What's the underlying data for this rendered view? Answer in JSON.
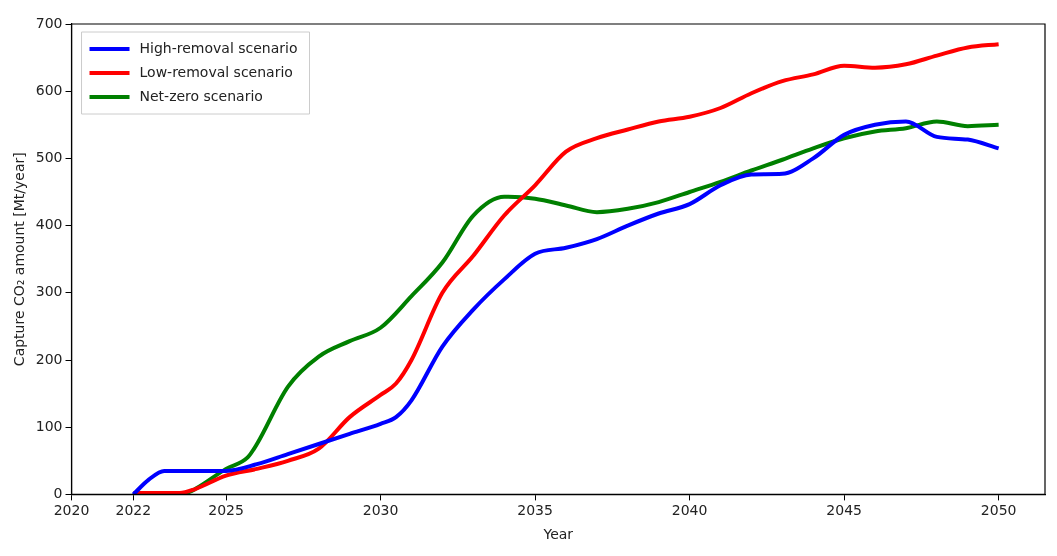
{
  "chart_data": {
    "type": "line",
    "xlabel": "Year",
    "ylabel": "Capture CO₂ amount [Mt/year]",
    "xlim": [
      2020,
      2051.5
    ],
    "xticks": [
      2020,
      2022,
      2025,
      2030,
      2035,
      2040,
      2045,
      2050
    ],
    "ylim": [
      0,
      700
    ],
    "yticks": [
      0,
      100,
      200,
      300,
      400,
      500,
      600,
      700
    ],
    "grid": false,
    "legend": "top left",
    "line_style": "solid",
    "marker": "none",
    "series": [
      {
        "name": "High-removal scenario",
        "color": "#0000ff",
        "x": [
          2022,
          2022.5,
          2023,
          2024,
          2025,
          2026,
          2027,
          2028,
          2029,
          2030,
          2030.5,
          2031,
          2032,
          2033,
          2034,
          2035,
          2036,
          2037,
          2038,
          2039,
          2040,
          2041,
          2042,
          2043,
          2044,
          2045,
          2046,
          2047,
          2048,
          2049,
          2050
        ],
        "values": [
          0,
          22,
          35,
          35,
          35,
          45,
          60,
          75,
          90,
          105,
          115,
          140,
          220,
          275,
          320,
          358,
          367,
          380,
          400,
          418,
          432,
          460,
          476,
          477,
          500,
          535,
          550,
          555,
          532,
          528,
          515
        ]
      },
      {
        "name": "Low-removal scenario",
        "color": "#ff0000",
        "x": [
          2022,
          2023,
          2023.5,
          2024,
          2025,
          2026,
          2027,
          2028,
          2029,
          2030,
          2030.5,
          2031,
          2032,
          2033,
          2034,
          2035,
          2036,
          2037,
          2038,
          2039,
          2040,
          2041,
          2042,
          2043,
          2044,
          2045,
          2046,
          2047,
          2048,
          2049,
          2050
        ],
        "values": [
          2,
          2,
          2,
          8,
          28,
          38,
          50,
          68,
          115,
          148,
          165,
          200,
          300,
          355,
          415,
          460,
          510,
          530,
          543,
          555,
          562,
          575,
          597,
          615,
          625,
          638,
          635,
          640,
          653,
          665,
          670
        ]
      },
      {
        "name": "Net-zero scenario",
        "color": "#008000",
        "x": [
          2022,
          2023,
          2023.7,
          2024,
          2025,
          2025.7,
          2026,
          2027,
          2028,
          2029,
          2030,
          2031,
          2032,
          2033,
          2034,
          2035,
          2036,
          2037,
          2038,
          2039,
          2040,
          2041,
          2042,
          2043,
          2044,
          2045,
          2046,
          2047,
          2048,
          2049,
          2050
        ],
        "values": [
          0,
          0,
          2,
          8,
          38,
          55,
          75,
          160,
          205,
          228,
          248,
          295,
          345,
          415,
          443,
          440,
          430,
          420,
          425,
          435,
          450,
          465,
          482,
          498,
          515,
          530,
          540,
          545,
          555,
          548,
          550
        ]
      }
    ]
  }
}
